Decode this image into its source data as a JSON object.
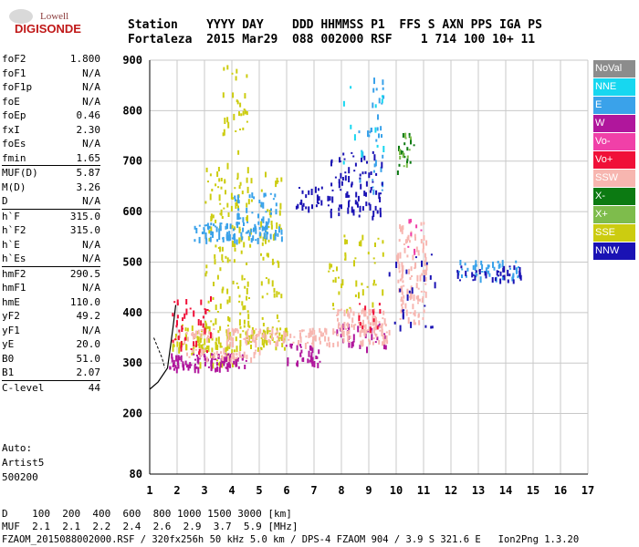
{
  "logo": {
    "line1": "Lowell",
    "line2": "DIGISONDE"
  },
  "header": {
    "line1": "Station    YYYY DAY    DDD HHMMSS P1  FFS S AXN PPS IGA PS",
    "line2": "Fortaleza  2015 Mar29  088 002000 RSF    1 714 100 10+ 11"
  },
  "params": [
    {
      "label": "foF2",
      "value": "1.800"
    },
    {
      "label": "foF1",
      "value": "N/A"
    },
    {
      "label": "foF1p",
      "value": "N/A"
    },
    {
      "label": "foE",
      "value": "N/A"
    },
    {
      "label": "foEp",
      "value": "0.46"
    },
    {
      "label": "fxI",
      "value": "2.30"
    },
    {
      "label": "foEs",
      "value": "N/A"
    },
    {
      "label": "fmin",
      "value": "1.65"
    },
    {
      "label": "MUF(D)",
      "value": "5.87",
      "sep": true
    },
    {
      "label": "M(D)",
      "value": "3.26"
    },
    {
      "label": "D",
      "value": "N/A"
    },
    {
      "label": "h`F",
      "value": "315.0",
      "sep": true
    },
    {
      "label": "h`F2",
      "value": "315.0"
    },
    {
      "label": "h`E",
      "value": "N/A"
    },
    {
      "label": "h`Es",
      "value": "N/A"
    },
    {
      "label": "hmF2",
      "value": "290.5",
      "sep": true
    },
    {
      "label": "hmF1",
      "value": "N/A"
    },
    {
      "label": "hmE",
      "value": "110.0"
    },
    {
      "label": "yF2",
      "value": "49.2"
    },
    {
      "label": "yF1",
      "value": "N/A"
    },
    {
      "label": "yE",
      "value": "20.0"
    },
    {
      "label": "B0",
      "value": "51.0"
    },
    {
      "label": "B1",
      "value": "2.07"
    },
    {
      "label": "C-level",
      "value": "44",
      "sep": true
    }
  ],
  "autoscale": {
    "line1": "Auto:",
    "line2": "Artist5",
    "line3": "500200"
  },
  "legend": [
    {
      "label": "NoVal",
      "color": "#8c8c8c"
    },
    {
      "label": "NNE",
      "color": "#17d7f0"
    },
    {
      "label": "E",
      "color": "#3aa2ea"
    },
    {
      "label": "W",
      "color": "#b0169c"
    },
    {
      "label": "Vo-",
      "color": "#f040a8"
    },
    {
      "label": "Vo+",
      "color": "#f01038"
    },
    {
      "label": "SSW",
      "color": "#f7b6b0"
    },
    {
      "label": "X-",
      "color": "#0c7a12"
    },
    {
      "label": "X+",
      "color": "#7ebc4c"
    },
    {
      "label": "SSE",
      "color": "#cccc10"
    },
    {
      "label": "NNW",
      "color": "#1a12b4"
    }
  ],
  "footer": {
    "line1": "D    100  200  400  600  800 1000 1500 3000 [km]",
    "line2": "MUF  2.1  2.1  2.2  2.4  2.6  2.9  3.7  5.9 [MHz]",
    "line3": "FZAOM_2015088002000.RSF / 320fx256h 50 kHz 5.0 km / DPS-4 FZAOM 904 / 3.9 S 321.6 E   Ion2Png 1.3.20"
  },
  "chart_data": {
    "type": "scatter",
    "xlim": [
      1,
      17
    ],
    "ylim": [
      80,
      900
    ],
    "xticks": [
      1,
      2,
      3,
      4,
      5,
      6,
      7,
      8,
      9,
      10,
      11,
      12,
      13,
      14,
      15,
      16,
      17
    ],
    "yticks": [
      80,
      200,
      300,
      400,
      500,
      600,
      700,
      800,
      900
    ],
    "grid": true,
    "clusters": [
      {
        "color": "#cccc10",
        "x": [
          1.8,
          6.0
        ],
        "y": [
          330,
          380
        ],
        "n": 140
      },
      {
        "color": "#cccc10",
        "x": [
          3.0,
          4.7
        ],
        "y": [
          380,
          700
        ],
        "n": 130
      },
      {
        "color": "#cccc10",
        "x": [
          5.0,
          5.8
        ],
        "y": [
          380,
          680
        ],
        "n": 50
      },
      {
        "color": "#cccc10",
        "x": [
          3.6,
          4.6
        ],
        "y": [
          720,
          900
        ],
        "n": 30
      },
      {
        "color": "#cccc10",
        "x": [
          7.5,
          9.6
        ],
        "y": [
          400,
          560
        ],
        "n": 45
      },
      {
        "color": "#cccc10",
        "x": [
          2.5,
          4.2
        ],
        "y": [
          300,
          340
        ],
        "n": 30
      },
      {
        "color": "#3aa2ea",
        "x": [
          2.6,
          5.8
        ],
        "y": [
          545,
          580
        ],
        "n": 90
      },
      {
        "color": "#3aa2ea",
        "x": [
          4.0,
          5.6
        ],
        "y": [
          580,
          640
        ],
        "n": 40
      },
      {
        "color": "#3aa2ea",
        "x": [
          12.2,
          14.5
        ],
        "y": [
          470,
          505
        ],
        "n": 45
      },
      {
        "color": "#3aa2ea",
        "x": [
          8.6,
          9.6
        ],
        "y": [
          640,
          880
        ],
        "n": 35
      },
      {
        "color": "#b0169c",
        "x": [
          1.7,
          4.5
        ],
        "y": [
          290,
          320
        ],
        "n": 100
      },
      {
        "color": "#b0169c",
        "x": [
          5.9,
          7.2
        ],
        "y": [
          300,
          340
        ],
        "n": 35
      },
      {
        "color": "#b0169c",
        "x": [
          7.8,
          9.6
        ],
        "y": [
          330,
          380
        ],
        "n": 35
      },
      {
        "color": "#f7b6b0",
        "x": [
          1.8,
          9.8
        ],
        "y": [
          340,
          370
        ],
        "n": 170
      },
      {
        "color": "#f7b6b0",
        "x": [
          7.8,
          9.6
        ],
        "y": [
          370,
          410
        ],
        "n": 70
      },
      {
        "color": "#f7b6b0",
        "x": [
          10.0,
          11.1
        ],
        "y": [
          380,
          580
        ],
        "n": 110
      },
      {
        "color": "#f7b6b0",
        "x": [
          2.2,
          5.0
        ],
        "y": [
          310,
          330
        ],
        "n": 40
      },
      {
        "color": "#1a12b4",
        "x": [
          7.5,
          9.5
        ],
        "y": [
          590,
          720
        ],
        "n": 85
      },
      {
        "color": "#1a12b4",
        "x": [
          6.3,
          7.5
        ],
        "y": [
          610,
          650
        ],
        "n": 25
      },
      {
        "color": "#1a12b4",
        "x": [
          12.2,
          14.6
        ],
        "y": [
          465,
          495
        ],
        "n": 35
      },
      {
        "color": "#1a12b4",
        "x": [
          9.7,
          11.4
        ],
        "y": [
          370,
          530
        ],
        "n": 25
      },
      {
        "color": "#f01038",
        "x": [
          1.8,
          3.2
        ],
        "y": [
          320,
          440
        ],
        "n": 40
      },
      {
        "color": "#f01038",
        "x": [
          8.6,
          9.4
        ],
        "y": [
          370,
          420
        ],
        "n": 12
      },
      {
        "color": "#0c7a12",
        "x": [
          10.0,
          10.7
        ],
        "y": [
          680,
          760
        ],
        "n": 18
      },
      {
        "color": "#7ebc4c",
        "x": [
          10.1,
          10.6
        ],
        "y": [
          690,
          760
        ],
        "n": 10
      },
      {
        "color": "#17d7f0",
        "x": [
          8.0,
          9.7
        ],
        "y": [
          700,
          860
        ],
        "n": 12
      },
      {
        "color": "#f040a8",
        "x": [
          10.4,
          10.9
        ],
        "y": [
          520,
          600
        ],
        "n": 8
      }
    ],
    "trace": [
      [
        1.0,
        248
      ],
      [
        1.3,
        262
      ],
      [
        1.5,
        278
      ],
      [
        1.65,
        290
      ],
      [
        1.75,
        330
      ],
      [
        1.85,
        370
      ],
      [
        1.95,
        415
      ]
    ],
    "trace_dashed": [
      [
        1.15,
        350
      ],
      [
        1.3,
        330
      ],
      [
        1.45,
        310
      ],
      [
        1.55,
        290
      ]
    ]
  }
}
